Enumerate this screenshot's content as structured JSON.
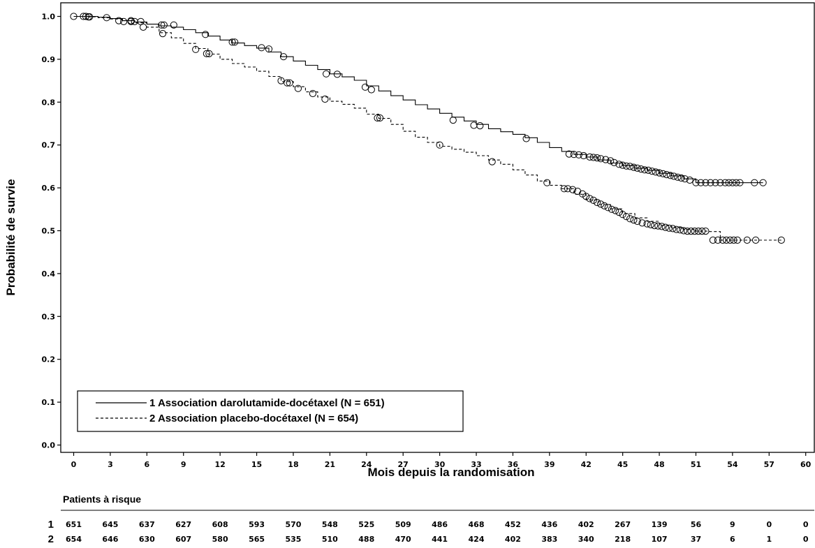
{
  "chart_data": {
    "type": "line",
    "xlabel": "Mois depuis la randomisation",
    "ylabel": "Probabilité de survie",
    "xlim": [
      0,
      60
    ],
    "ylim": [
      0,
      1
    ],
    "x_ticks": [
      0,
      3,
      6,
      9,
      12,
      15,
      18,
      21,
      24,
      27,
      30,
      33,
      36,
      39,
      42,
      45,
      48,
      51,
      54,
      57,
      60
    ],
    "y_ticks": [
      "0.0",
      "0.1",
      "0.2",
      "0.3",
      "0.4",
      "0.5",
      "0.6",
      "0.7",
      "0.8",
      "0.9",
      "1.0"
    ],
    "grid": false,
    "legend_position": "bottom-left",
    "series": [
      {
        "name": "1 Association darolutamide-docétaxel (N = 651)",
        "line_style": "solid",
        "color": "#000000",
        "x": [
          0,
          1,
          2,
          3,
          4,
          5,
          6,
          7,
          8,
          9,
          10,
          11,
          12,
          13,
          14,
          15,
          16,
          17,
          18,
          19,
          20,
          21,
          22,
          23,
          24,
          25,
          26,
          27,
          28,
          29,
          30,
          31,
          32,
          33,
          34,
          35,
          36,
          37,
          38,
          39,
          40,
          41,
          42,
          43,
          44,
          45,
          46,
          47,
          48,
          49,
          50,
          51,
          52,
          53,
          54,
          55,
          56.5
        ],
        "y": [
          1.0,
          1.0,
          0.998,
          0.995,
          0.99,
          0.987,
          0.982,
          0.978,
          0.975,
          0.969,
          0.962,
          0.954,
          0.945,
          0.938,
          0.932,
          0.926,
          0.917,
          0.906,
          0.896,
          0.886,
          0.876,
          0.866,
          0.859,
          0.851,
          0.838,
          0.826,
          0.815,
          0.805,
          0.794,
          0.784,
          0.774,
          0.765,
          0.756,
          0.748,
          0.738,
          0.731,
          0.725,
          0.717,
          0.706,
          0.694,
          0.685,
          0.678,
          0.672,
          0.665,
          0.658,
          0.652,
          0.646,
          0.641,
          0.634,
          0.628,
          0.621,
          0.612,
          0.612,
          0.612,
          0.612,
          0.612,
          0.612
        ],
        "censored": [
          [
            0,
            1.0
          ],
          [
            0.8,
            1.0
          ],
          [
            1.0,
            1.0
          ],
          [
            1.3,
            0.999
          ],
          [
            2.7,
            0.997
          ],
          [
            3.7,
            0.99
          ],
          [
            4.1,
            0.988
          ],
          [
            4.7,
            0.988
          ],
          [
            5.0,
            0.988
          ],
          [
            5.5,
            0.988
          ],
          [
            7.2,
            0.98
          ],
          [
            7.4,
            0.98
          ],
          [
            8.2,
            0.98
          ],
          [
            10.8,
            0.958
          ],
          [
            13.0,
            0.94
          ],
          [
            13.2,
            0.94
          ],
          [
            15.4,
            0.927
          ],
          [
            16.0,
            0.924
          ],
          [
            17.2,
            0.906
          ],
          [
            20.7,
            0.866
          ],
          [
            21.6,
            0.865
          ],
          [
            23.9,
            0.835
          ],
          [
            24.4,
            0.829
          ],
          [
            31.1,
            0.758
          ],
          [
            32.8,
            0.746
          ],
          [
            33.3,
            0.745
          ],
          [
            37.1,
            0.715
          ],
          [
            40.6,
            0.679
          ],
          [
            41.0,
            0.678
          ],
          [
            41.4,
            0.677
          ],
          [
            41.8,
            0.675
          ],
          [
            42.3,
            0.672
          ],
          [
            42.6,
            0.671
          ],
          [
            42.9,
            0.67
          ],
          [
            43.2,
            0.668
          ],
          [
            43.6,
            0.666
          ],
          [
            44.0,
            0.663
          ],
          [
            44.3,
            0.659
          ],
          [
            44.7,
            0.655
          ],
          [
            45.0,
            0.653
          ],
          [
            45.3,
            0.651
          ],
          [
            45.6,
            0.65
          ],
          [
            45.9,
            0.648
          ],
          [
            46.2,
            0.646
          ],
          [
            46.5,
            0.644
          ],
          [
            46.8,
            0.642
          ],
          [
            47.1,
            0.641
          ],
          [
            47.4,
            0.639
          ],
          [
            47.7,
            0.637
          ],
          [
            48.0,
            0.635
          ],
          [
            48.3,
            0.633
          ],
          [
            48.6,
            0.631
          ],
          [
            48.9,
            0.629
          ],
          [
            49.2,
            0.627
          ],
          [
            49.5,
            0.625
          ],
          [
            49.8,
            0.623
          ],
          [
            50.1,
            0.621
          ],
          [
            50.5,
            0.618
          ],
          [
            51.0,
            0.612
          ],
          [
            51.4,
            0.612
          ],
          [
            51.8,
            0.612
          ],
          [
            52.2,
            0.612
          ],
          [
            52.6,
            0.612
          ],
          [
            53.0,
            0.612
          ],
          [
            53.4,
            0.612
          ],
          [
            53.7,
            0.612
          ],
          [
            54.0,
            0.612
          ],
          [
            54.3,
            0.612
          ],
          [
            54.6,
            0.612
          ],
          [
            55.8,
            0.612
          ],
          [
            56.5,
            0.612
          ]
        ]
      },
      {
        "name": "2 Association placebo-docétaxel (N = 654)",
        "line_style": "dashed",
        "color": "#000000",
        "x": [
          0,
          1,
          2,
          3,
          4,
          5,
          6,
          7,
          8,
          9,
          10,
          11,
          12,
          13,
          14,
          15,
          16,
          17,
          18,
          19,
          20,
          21,
          22,
          23,
          24,
          25,
          26,
          27,
          28,
          29,
          30,
          31,
          32,
          33,
          34,
          35,
          36,
          37,
          38,
          39,
          40,
          41,
          42,
          43,
          44,
          45,
          46,
          47,
          48,
          49,
          50,
          51,
          52,
          53,
          54,
          55,
          56,
          58
        ],
        "y": [
          1.0,
          0.999,
          0.997,
          0.994,
          0.99,
          0.985,
          0.975,
          0.962,
          0.95,
          0.937,
          0.925,
          0.912,
          0.9,
          0.89,
          0.882,
          0.872,
          0.86,
          0.848,
          0.836,
          0.824,
          0.812,
          0.802,
          0.795,
          0.786,
          0.772,
          0.762,
          0.748,
          0.732,
          0.718,
          0.706,
          0.697,
          0.69,
          0.683,
          0.675,
          0.665,
          0.655,
          0.642,
          0.63,
          0.616,
          0.606,
          0.598,
          0.585,
          0.572,
          0.561,
          0.551,
          0.54,
          0.53,
          0.522,
          0.512,
          0.507,
          0.503,
          0.499,
          0.498,
          0.478,
          0.478,
          0.478,
          0.478,
          0.478
        ],
        "censored": [
          [
            1.2,
            0.999
          ],
          [
            4.7,
            0.99
          ],
          [
            5.7,
            0.975
          ],
          [
            7.3,
            0.96
          ],
          [
            10.0,
            0.923
          ],
          [
            10.9,
            0.913
          ],
          [
            11.1,
            0.913
          ],
          [
            17.0,
            0.85
          ],
          [
            17.5,
            0.845
          ],
          [
            17.7,
            0.845
          ],
          [
            18.4,
            0.832
          ],
          [
            19.6,
            0.82
          ],
          [
            20.6,
            0.807
          ],
          [
            24.9,
            0.763
          ],
          [
            25.1,
            0.763
          ],
          [
            30.0,
            0.7
          ],
          [
            34.3,
            0.661
          ],
          [
            38.8,
            0.612
          ],
          [
            40.2,
            0.598
          ],
          [
            40.5,
            0.598
          ],
          [
            40.9,
            0.596
          ],
          [
            41.3,
            0.592
          ],
          [
            41.7,
            0.586
          ],
          [
            42.0,
            0.58
          ],
          [
            42.3,
            0.575
          ],
          [
            42.6,
            0.571
          ],
          [
            42.9,
            0.566
          ],
          [
            43.2,
            0.562
          ],
          [
            43.5,
            0.558
          ],
          [
            43.8,
            0.554
          ],
          [
            44.1,
            0.55
          ],
          [
            44.4,
            0.547
          ],
          [
            44.7,
            0.543
          ],
          [
            45.0,
            0.538
          ],
          [
            45.3,
            0.533
          ],
          [
            45.6,
            0.528
          ],
          [
            45.9,
            0.525
          ],
          [
            46.2,
            0.522
          ],
          [
            46.6,
            0.518
          ],
          [
            47.0,
            0.516
          ],
          [
            47.3,
            0.514
          ],
          [
            47.6,
            0.512
          ],
          [
            47.9,
            0.511
          ],
          [
            48.2,
            0.51
          ],
          [
            48.5,
            0.508
          ],
          [
            48.8,
            0.506
          ],
          [
            49.1,
            0.505
          ],
          [
            49.4,
            0.503
          ],
          [
            49.7,
            0.502
          ],
          [
            50.0,
            0.5
          ],
          [
            50.3,
            0.499
          ],
          [
            50.6,
            0.499
          ],
          [
            50.9,
            0.499
          ],
          [
            51.2,
            0.499
          ],
          [
            51.5,
            0.499
          ],
          [
            51.8,
            0.499
          ],
          [
            52.4,
            0.478
          ],
          [
            52.8,
            0.478
          ],
          [
            53.2,
            0.478
          ],
          [
            53.5,
            0.478
          ],
          [
            53.8,
            0.478
          ],
          [
            54.1,
            0.478
          ],
          [
            54.4,
            0.478
          ],
          [
            55.2,
            0.478
          ],
          [
            55.9,
            0.478
          ],
          [
            58.0,
            0.478
          ]
        ]
      }
    ],
    "risk_table": {
      "title": "Patients à risque",
      "rows": [
        {
          "label": "1",
          "values": [
            "651",
            "645",
            "637",
            "627",
            "608",
            "593",
            "570",
            "548",
            "525",
            "509",
            "486",
            "468",
            "452",
            "436",
            "402",
            "267",
            "139",
            "56",
            "9",
            "0",
            "0"
          ]
        },
        {
          "label": "2",
          "values": [
            "654",
            "646",
            "630",
            "607",
            "580",
            "565",
            "535",
            "510",
            "488",
            "470",
            "441",
            "424",
            "402",
            "383",
            "340",
            "218",
            "107",
            "37",
            "6",
            "1",
            "0"
          ]
        }
      ]
    }
  }
}
